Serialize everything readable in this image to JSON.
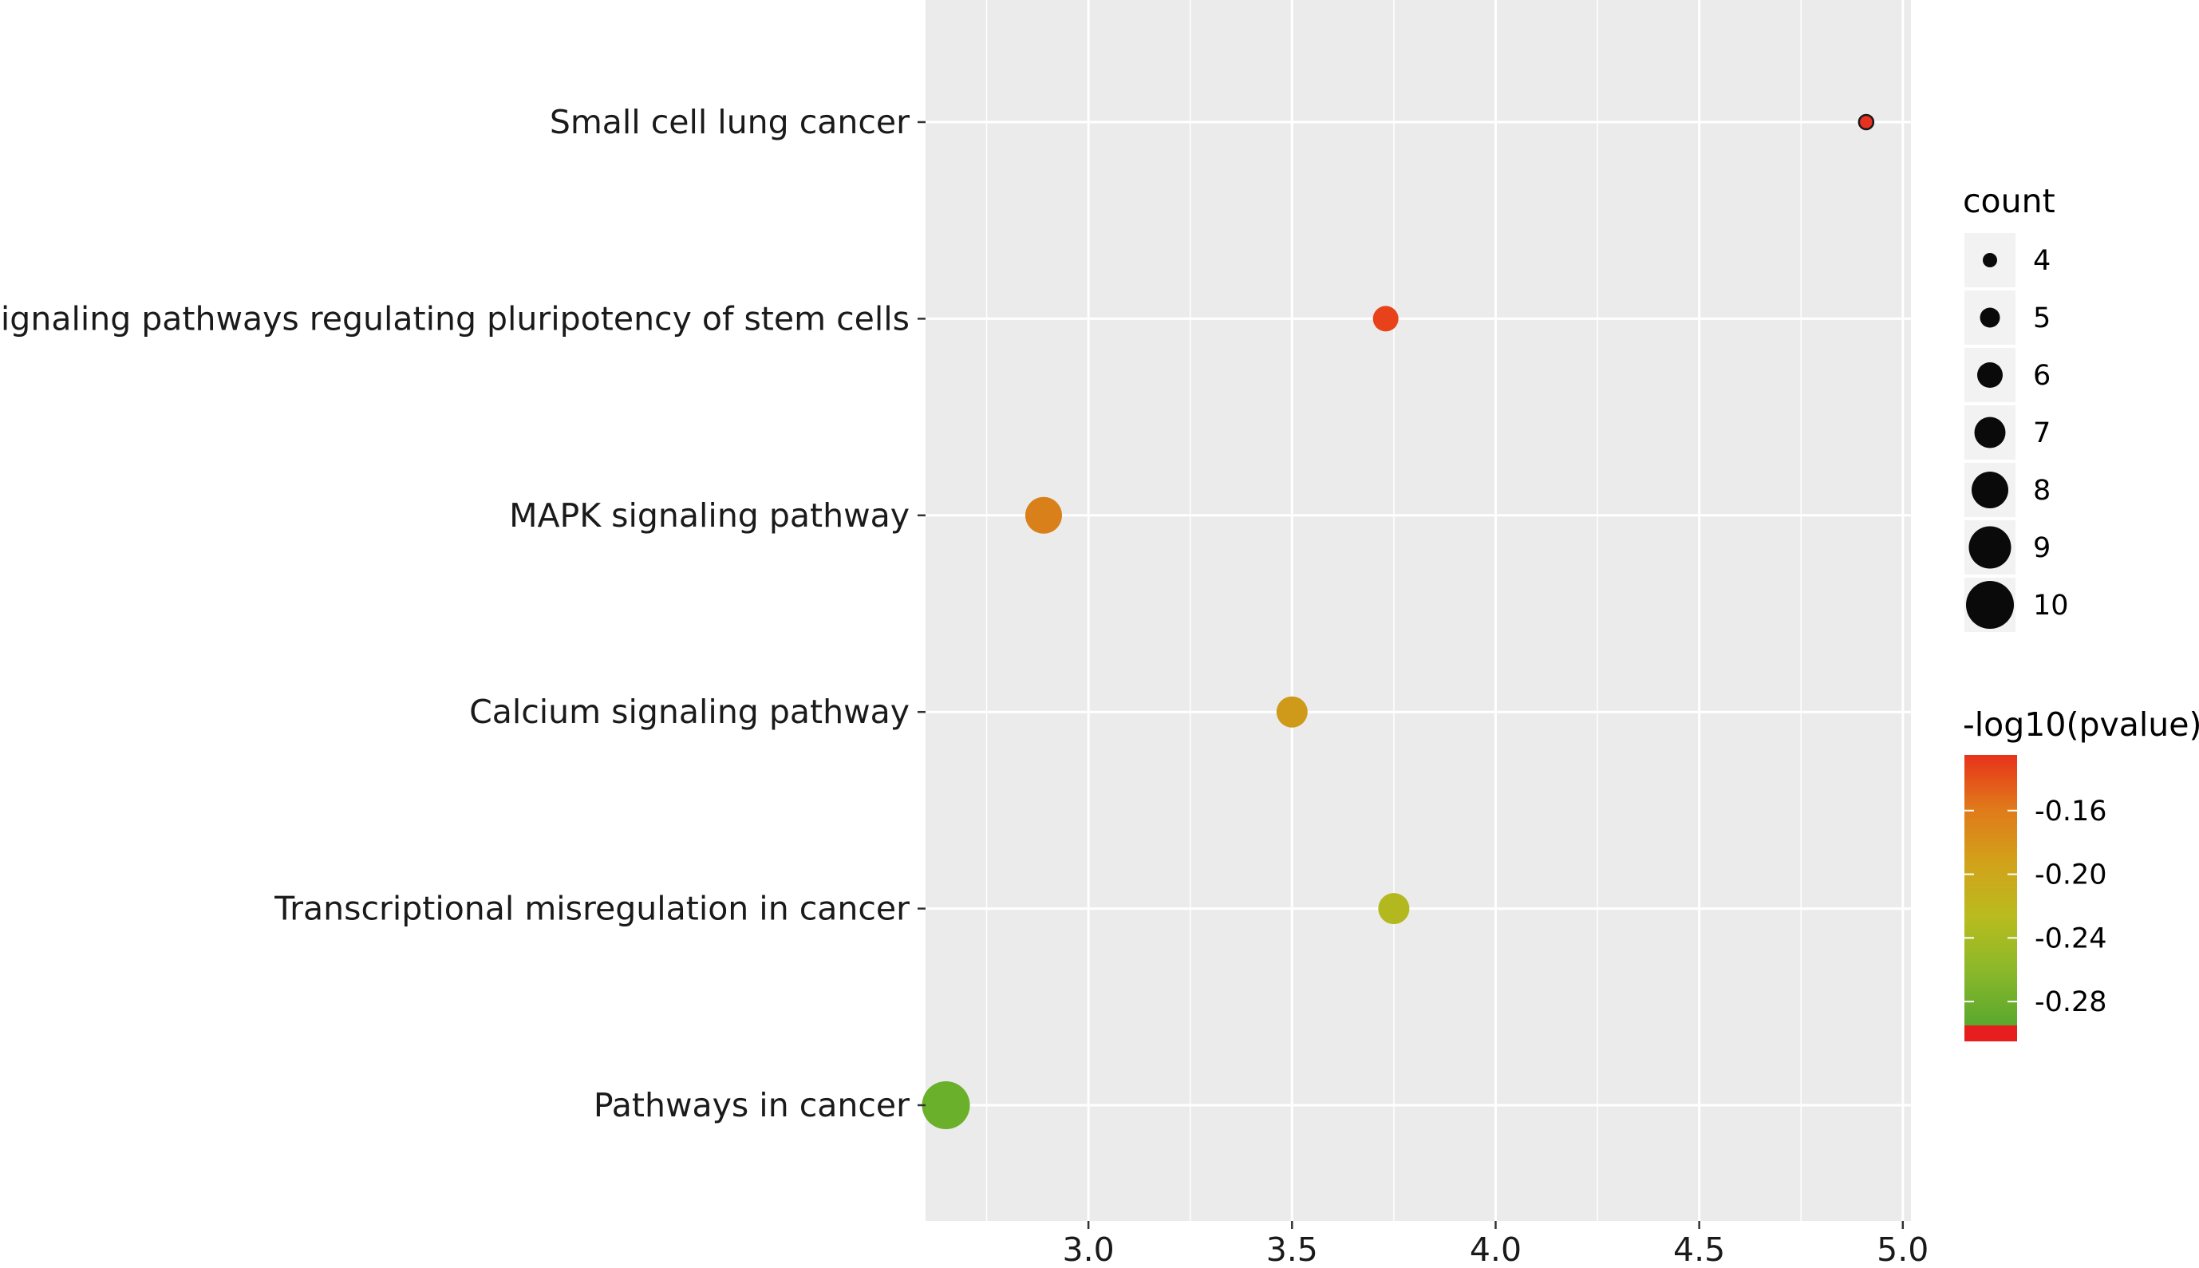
{
  "chart_data": {
    "type": "scatter",
    "title": "",
    "xlabel": "",
    "ylabel": "",
    "xlim": [
      2.6,
      5.02
    ],
    "xticks": [
      3.0,
      3.5,
      4.0,
      4.5,
      5.0
    ],
    "xtick_labels": [
      "3.0",
      "3.5",
      "4.0",
      "4.5",
      "5.0"
    ],
    "grid": true,
    "legend_position": "right",
    "categories": [
      "Small cell lung cancer",
      "Signaling pathways regulating pluripotency of stem cells",
      "MAPK signaling pathway",
      "Calcium signaling pathway",
      "Transcriptional misregulation in cancer",
      "Pathways in cancer"
    ],
    "points": [
      {
        "category": "Small cell lung cancer",
        "x": 4.91,
        "count": 4,
        "color": "#e8311f"
      },
      {
        "category": "Signaling pathways regulating pluripotency of stem cells",
        "x": 3.73,
        "count": 6,
        "color": "#e8421a"
      },
      {
        "category": "MAPK signaling pathway",
        "x": 2.89,
        "count": 8,
        "color": "#d9801a"
      },
      {
        "category": "Calcium signaling pathway",
        "x": 3.5,
        "count": 7,
        "color": "#cf9a1a"
      },
      {
        "category": "Transcriptional misregulation in cancer",
        "x": 3.75,
        "count": 7,
        "color": "#b2b81e"
      },
      {
        "category": "Pathways in cancer",
        "x": 2.65,
        "count": 10,
        "color": "#6ab02a"
      }
    ],
    "size_legend": {
      "title": "count",
      "values": [
        4,
        5,
        6,
        7,
        8,
        9,
        10
      ],
      "labels": [
        "4",
        "5",
        "6",
        "7",
        "8",
        "9",
        "10"
      ],
      "color": "#0a0a0a"
    },
    "color_legend": {
      "title": "-log10(pvalue)",
      "ticks": [
        -0.16,
        -0.2,
        -0.24,
        -0.28
      ],
      "tick_labels": [
        "-0.16",
        "-0.20",
        "-0.24",
        "-0.28"
      ],
      "range": [
        -0.125,
        -0.295
      ],
      "colors": [
        "#e8321a",
        "#e07a1a",
        "#d2a21a",
        "#b8bc1e",
        "#8ab82a",
        "#5aa82e"
      ],
      "na_color": "#e81e1e"
    }
  }
}
